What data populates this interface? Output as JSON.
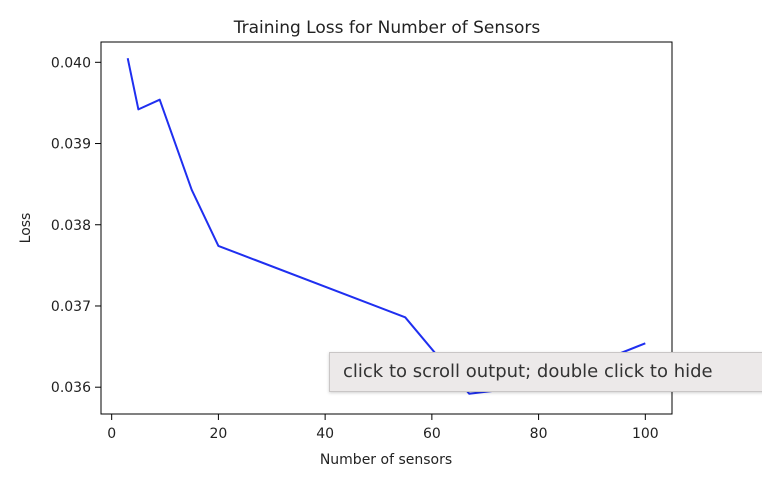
{
  "chart_data": {
    "type": "line",
    "title": "Training Loss for Number of Sensors",
    "xlabel": "Number of sensors",
    "ylabel": "Loss",
    "xlim": [
      -2,
      105
    ],
    "ylim": [
      0.03567,
      0.04025
    ],
    "xticks": [
      0,
      20,
      40,
      60,
      80,
      100
    ],
    "yticks": [
      0.036,
      0.037,
      0.038,
      0.039,
      0.04
    ],
    "xtick_labels": [
      "0",
      "20",
      "40",
      "60",
      "80",
      "100"
    ],
    "ytick_labels": [
      "0.036",
      "0.037",
      "0.038",
      "0.039",
      "0.040"
    ],
    "grid": false,
    "series": [
      {
        "color": "#1f2ff0",
        "x": [
          3,
          5,
          9,
          15,
          20,
          55,
          67,
          80,
          100
        ],
        "y": [
          0.04005,
          0.03942,
          0.03954,
          0.03843,
          0.03774,
          0.03686,
          0.03592,
          0.03602,
          0.03654
        ]
      }
    ]
  },
  "tooltip": {
    "text": "click to scroll output; double click to hide"
  }
}
